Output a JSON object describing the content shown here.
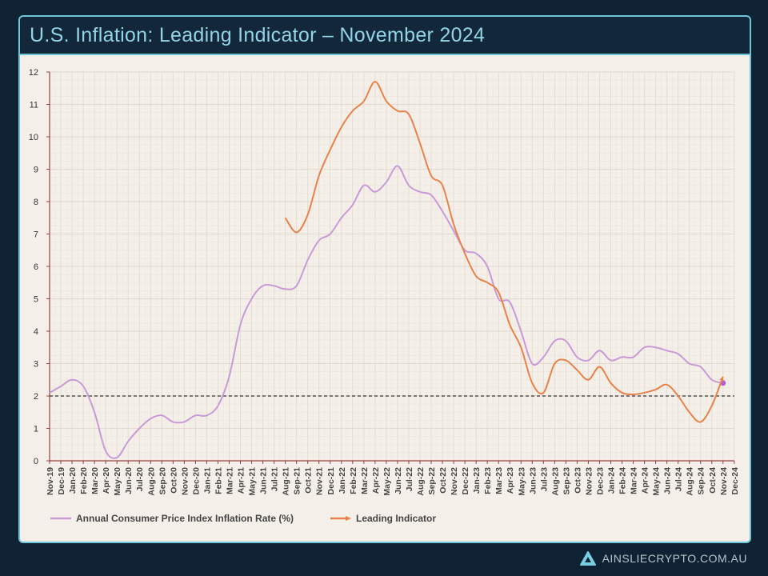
{
  "header": {
    "title": "U.S. Inflation: Leading Indicator – November 2024"
  },
  "footer": {
    "brand": "AINSLIECRYPTO.COM.AU",
    "logo_icon": "ainslie-a-logo-icon"
  },
  "chart_data": {
    "type": "line",
    "title": "U.S. Inflation: Leading Indicator – November 2024",
    "ylim": [
      0,
      12
    ],
    "yticks": [
      0,
      1,
      2,
      3,
      4,
      5,
      6,
      7,
      8,
      9,
      10,
      11,
      12
    ],
    "grid": true,
    "legend_position": "bottom",
    "reference_line": {
      "y": 2,
      "style": "dashed"
    },
    "categories": [
      "Nov-19",
      "Dec-19",
      "Jan-20",
      "Feb-20",
      "Mar-20",
      "Apr-20",
      "May-20",
      "Jun-20",
      "Jul-20",
      "Aug-20",
      "Sep-20",
      "Oct-20",
      "Nov-20",
      "Dec-20",
      "Jan-21",
      "Feb-21",
      "Mar-21",
      "Apr-21",
      "May-21",
      "Jun-21",
      "Jul-21",
      "Aug-21",
      "Sep-21",
      "Oct-21",
      "Nov-21",
      "Dec-21",
      "Jan-22",
      "Feb-22",
      "Mar-22",
      "Apr-22",
      "May-22",
      "Jun-22",
      "Jul-22",
      "Aug-22",
      "Sep-22",
      "Oct-22",
      "Nov-22",
      "Dec-22",
      "Jan-23",
      "Feb-23",
      "Mar-23",
      "Apr-23",
      "May-23",
      "Jun-23",
      "Jul-23",
      "Aug-23",
      "Sep-23",
      "Oct-23",
      "Nov-23",
      "Dec-23",
      "Jan-24",
      "Feb-24",
      "Mar-24",
      "Apr-24",
      "May-24",
      "Jun-24",
      "Jul-24",
      "Aug-24",
      "Sep-24",
      "Oct-24",
      "Nov-24",
      "Dec-24"
    ],
    "series": [
      {
        "name": "Annual Consumer Price Index Inflation Rate (%)",
        "color": "#c89ad8",
        "values": [
          2.1,
          2.3,
          2.5,
          2.3,
          1.5,
          0.3,
          0.1,
          0.6,
          1.0,
          1.3,
          1.4,
          1.2,
          1.2,
          1.4,
          1.4,
          1.7,
          2.6,
          4.2,
          5.0,
          5.4,
          5.4,
          5.3,
          5.4,
          6.2,
          6.8,
          7.0,
          7.5,
          7.9,
          8.5,
          8.3,
          8.6,
          9.1,
          8.5,
          8.3,
          8.2,
          7.7,
          7.1,
          6.5,
          6.4,
          6.0,
          5.0,
          4.9,
          4.0,
          3.0,
          3.2,
          3.7,
          3.7,
          3.2,
          3.1,
          3.4,
          3.1,
          3.2,
          3.2,
          3.5,
          3.5,
          3.4,
          3.3,
          3.0,
          2.9,
          2.5,
          2.4,
          null
        ]
      },
      {
        "name": "Leading Indicator",
        "color": "#e8824a",
        "values": [
          null,
          null,
          null,
          null,
          null,
          null,
          null,
          null,
          null,
          null,
          null,
          null,
          null,
          null,
          null,
          null,
          null,
          null,
          null,
          null,
          null,
          7.5,
          7.05,
          7.6,
          8.8,
          9.6,
          10.3,
          10.8,
          11.1,
          11.7,
          11.1,
          10.8,
          10.7,
          9.8,
          8.8,
          8.5,
          7.3,
          6.4,
          5.7,
          5.5,
          5.2,
          4.2,
          3.5,
          2.4,
          2.1,
          3.0,
          3.1,
          2.8,
          2.5,
          2.9,
          2.4,
          2.1,
          2.05,
          2.1,
          2.2,
          2.35,
          2.0,
          1.5,
          1.2,
          1.7,
          2.6,
          null
        ]
      }
    ]
  }
}
